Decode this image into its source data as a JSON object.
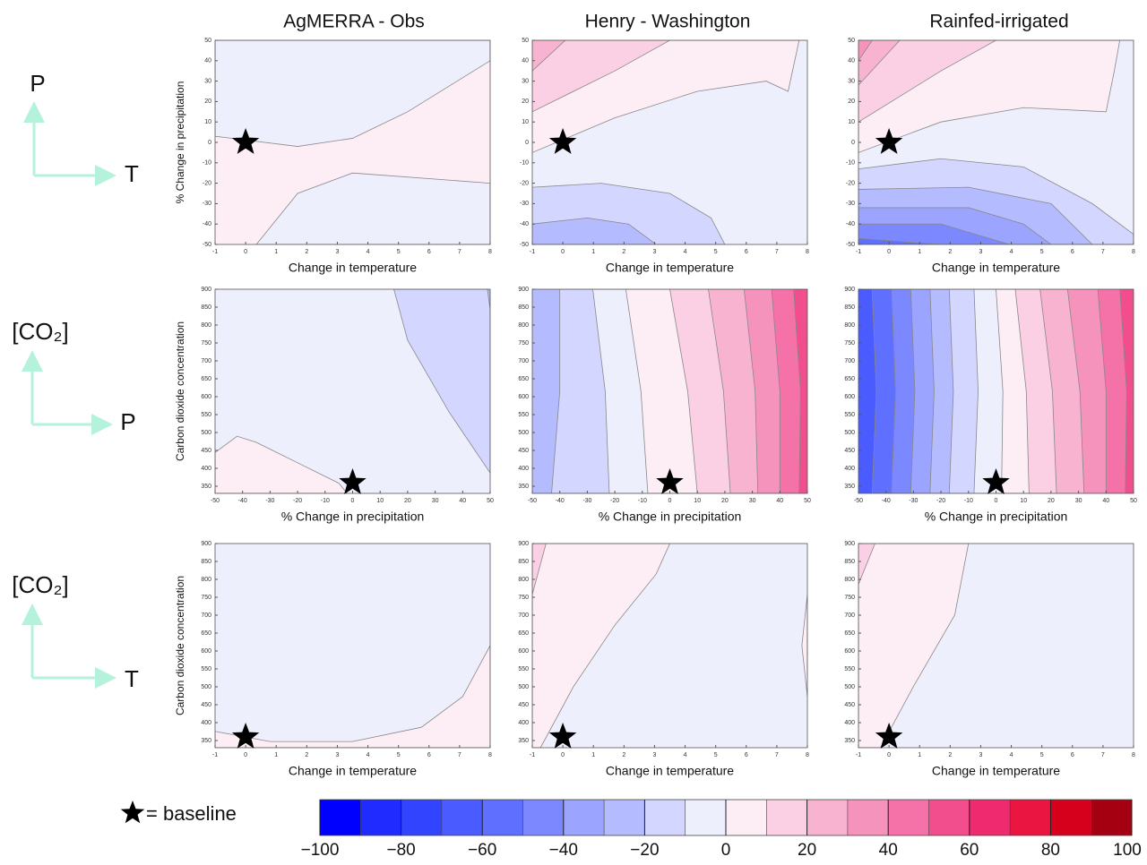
{
  "column_titles": [
    "AgMERRA - Obs",
    "Henry - Washington",
    "Rainfed-irrigated"
  ],
  "row_labels": [
    {
      "vertical": "P",
      "horizontal": "T"
    },
    {
      "vertical": "[CO₂]",
      "horizontal": "P"
    },
    {
      "vertical": "[CO₂]",
      "horizontal": "T"
    }
  ],
  "legend": {
    "label": "= baseline"
  },
  "colorbar": {
    "ticks": [
      {
        "value": -100,
        "label": "−100"
      },
      {
        "value": -80,
        "label": "−80"
      },
      {
        "value": -60,
        "label": "−60"
      },
      {
        "value": -40,
        "label": "−40"
      },
      {
        "value": -20,
        "label": "−20"
      },
      0,
      20,
      40,
      60,
      80,
      100
    ],
    "colors": [
      "#0000ff",
      "#1f2bff",
      "#3344ff",
      "#4a5cff",
      "#5f6fff",
      "#7b88ff",
      "#9ba4ff",
      "#b5bbff",
      "#d3d6ff",
      "#eeeffd",
      "#fdeef5",
      "#fbd0e4",
      "#f8b3d1",
      "#f693bd",
      "#f472a8",
      "#f24e8e",
      "#f02a6e",
      "#eb1541",
      "#d6001c",
      "#a50012"
    ]
  },
  "chart_data": [
    {
      "type": "contour",
      "xlabel": "Change in temperature",
      "ylabel": "% Change in precipitation",
      "xlim": [
        -1,
        8
      ],
      "ylim": [
        -50,
        50
      ],
      "xticks": [
        -1,
        0,
        1,
        2,
        3,
        4,
        5,
        6,
        7,
        8
      ],
      "yticks": [
        -50,
        -40,
        -30,
        -20,
        -10,
        0,
        10,
        20,
        30,
        40,
        50
      ],
      "baseline": {
        "x": 0,
        "y": 0
      }
    },
    {
      "type": "contour",
      "xlabel": "Change in temperature",
      "xlim": [
        -1,
        8
      ],
      "ylim": [
        -50,
        50
      ],
      "xticks": [
        -1,
        0,
        1,
        2,
        3,
        4,
        5,
        6,
        7,
        8
      ],
      "yticks": [
        -50,
        -40,
        -30,
        -20,
        -10,
        0,
        10,
        20,
        30,
        40,
        50
      ],
      "baseline": {
        "x": 0,
        "y": 0
      }
    },
    {
      "type": "contour",
      "xlabel": "Change in temperature",
      "xlim": [
        -1,
        8
      ],
      "ylim": [
        -50,
        50
      ],
      "xticks": [
        -1,
        0,
        1,
        2,
        3,
        4,
        5,
        6,
        7,
        8
      ],
      "yticks": [
        -50,
        -40,
        -30,
        -20,
        -10,
        0,
        10,
        20,
        30,
        40,
        50
      ],
      "baseline": {
        "x": 0,
        "y": 0
      }
    },
    {
      "type": "contour",
      "xlabel": "% Change in precipitation",
      "ylabel": "Carbon dioxide concentration",
      "xlim": [
        -50,
        50
      ],
      "ylim": [
        330,
        900
      ],
      "xticks": [
        -50,
        -40,
        -30,
        -20,
        -10,
        0,
        10,
        20,
        30,
        40,
        50
      ],
      "yticks": [
        350,
        400,
        450,
        500,
        550,
        600,
        650,
        700,
        750,
        800,
        850,
        900
      ],
      "baseline": {
        "x": 0,
        "y": 360
      }
    },
    {
      "type": "contour",
      "xlabel": "% Change in precipitation",
      "xlim": [
        -50,
        50
      ],
      "ylim": [
        330,
        900
      ],
      "xticks": [
        -50,
        -40,
        -30,
        -20,
        -10,
        0,
        10,
        20,
        30,
        40,
        50
      ],
      "yticks": [
        350,
        400,
        450,
        500,
        550,
        600,
        650,
        700,
        750,
        800,
        850,
        900
      ],
      "baseline": {
        "x": 0,
        "y": 360
      }
    },
    {
      "type": "contour",
      "xlabel": "% Change in precipitation",
      "xlim": [
        -50,
        50
      ],
      "ylim": [
        330,
        900
      ],
      "xticks": [
        -50,
        -40,
        -30,
        -20,
        -10,
        0,
        10,
        20,
        30,
        40,
        50
      ],
      "yticks": [
        350,
        400,
        450,
        500,
        550,
        600,
        650,
        700,
        750,
        800,
        850,
        900
      ],
      "baseline": {
        "x": 0,
        "y": 360
      }
    },
    {
      "type": "contour",
      "xlabel": "Change in temperature",
      "ylabel": "Carbon dioxide concentration",
      "xlim": [
        -1,
        8
      ],
      "ylim": [
        330,
        900
      ],
      "xticks": [
        -1,
        0,
        1,
        2,
        3,
        4,
        5,
        6,
        7,
        8
      ],
      "yticks": [
        350,
        400,
        450,
        500,
        550,
        600,
        650,
        700,
        750,
        800,
        850,
        900
      ],
      "baseline": {
        "x": 0,
        "y": 360
      }
    },
    {
      "type": "contour",
      "xlabel": "Change in temperature",
      "xlim": [
        -1,
        8
      ],
      "ylim": [
        330,
        900
      ],
      "xticks": [
        -1,
        0,
        1,
        2,
        3,
        4,
        5,
        6,
        7,
        8
      ],
      "yticks": [
        350,
        400,
        450,
        500,
        550,
        600,
        650,
        700,
        750,
        800,
        850,
        900
      ],
      "baseline": {
        "x": 0,
        "y": 360
      }
    },
    {
      "type": "contour",
      "xlabel": "Change in temperature",
      "xlim": [
        -1,
        8
      ],
      "ylim": [
        330,
        900
      ],
      "xticks": [
        -1,
        0,
        1,
        2,
        3,
        4,
        5,
        6,
        7,
        8
      ],
      "yticks": [
        350,
        400,
        450,
        500,
        550,
        600,
        650,
        700,
        750,
        800,
        850,
        900
      ],
      "baseline": {
        "x": 0,
        "y": 360
      }
    }
  ]
}
